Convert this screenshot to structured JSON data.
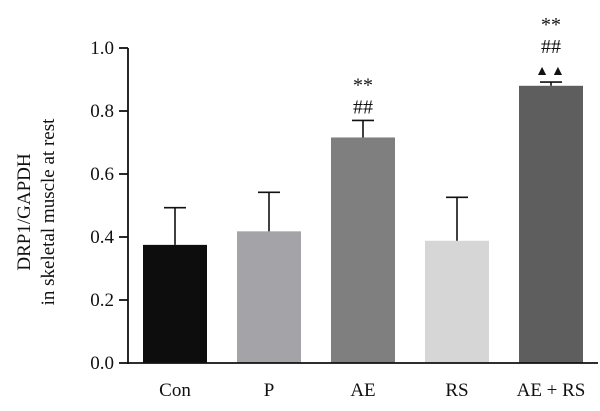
{
  "chart_data": {
    "type": "bar",
    "title": "",
    "ylabel_lines": [
      "DRP1/GAPDH",
      "in skeletal muscle at rest"
    ],
    "xlabel": "",
    "categories": [
      "Con",
      "P",
      "AE",
      "RS",
      "AE + RS"
    ],
    "values": [
      0.375,
      0.418,
      0.716,
      0.388,
      0.88
    ],
    "error_upper": [
      0.118,
      0.124,
      0.054,
      0.138,
      0.012
    ],
    "colors": [
      "#0d0d0d",
      "#a4a4a8",
      "#7f7f7f",
      "#d6d6d6",
      "#5e5e5e"
    ],
    "annotations": [
      [],
      [],
      [
        "##",
        "**"
      ],
      [],
      [
        "▲▲",
        "##",
        "**"
      ]
    ],
    "ylim": [
      0.0,
      1.0
    ],
    "yticks": [
      "0.0",
      "0.2",
      "0.4",
      "0.6",
      "0.8",
      "1.0"
    ],
    "grid": false
  }
}
